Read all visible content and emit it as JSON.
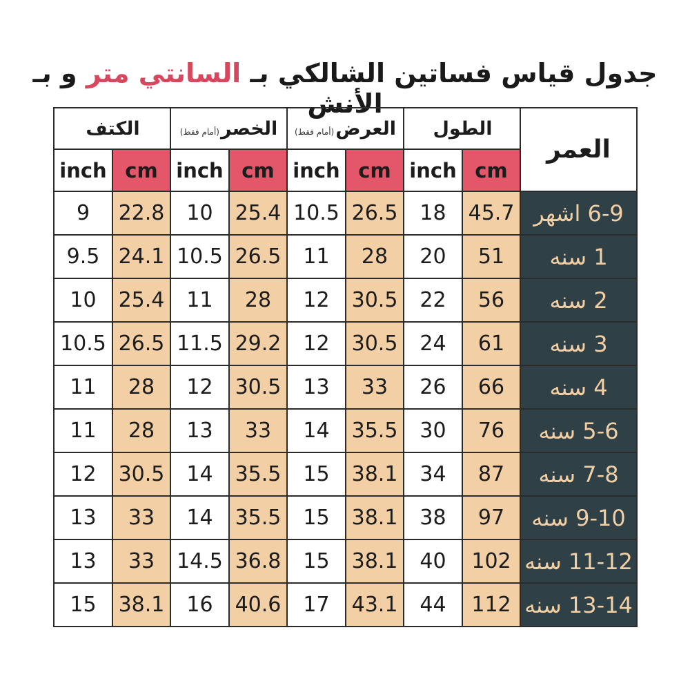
{
  "title": {
    "part1": "جدول قياس فساتين الشالكي بـ ",
    "accent": "السانتي متر",
    "part2": " و بـ الأنش"
  },
  "colors": {
    "accent": "#d9475e",
    "cm_header": "#e4566a",
    "cm_cell": "#f2cfa5",
    "age_cell": "#2f4147",
    "age_text": "#f2cfa5"
  },
  "table": {
    "age_header": "العمر",
    "groups": [
      {
        "name": "الطول",
        "note": ""
      },
      {
        "name": "العرض",
        "note": "(أمام فقط)"
      },
      {
        "name": "الخصر",
        "note": "(أمام فقط)"
      },
      {
        "name": "الكتف",
        "note": ""
      }
    ],
    "units": {
      "cm": "cm",
      "inch": "inch"
    },
    "rows": [
      {
        "age": "6-9 اشهر",
        "length": [
          "45.7",
          "18"
        ],
        "width": [
          "26.5",
          "10.5"
        ],
        "waist": [
          "25.4",
          "10"
        ],
        "shoulder": [
          "22.8",
          "9"
        ]
      },
      {
        "age": "1 سنه",
        "length": [
          "51",
          "20"
        ],
        "width": [
          "28",
          "11"
        ],
        "waist": [
          "26.5",
          "10.5"
        ],
        "shoulder": [
          "24.1",
          "9.5"
        ]
      },
      {
        "age": "2 سنه",
        "length": [
          "56",
          "22"
        ],
        "width": [
          "30.5",
          "12"
        ],
        "waist": [
          "28",
          "11"
        ],
        "shoulder": [
          "25.4",
          "10"
        ]
      },
      {
        "age": "3 سنه",
        "length": [
          "61",
          "24"
        ],
        "width": [
          "30.5",
          "12"
        ],
        "waist": [
          "29.2",
          "11.5"
        ],
        "shoulder": [
          "26.5",
          "10.5"
        ]
      },
      {
        "age": "4 سنه",
        "length": [
          "66",
          "26"
        ],
        "width": [
          "33",
          "13"
        ],
        "waist": [
          "30.5",
          "12"
        ],
        "shoulder": [
          "28",
          "11"
        ]
      },
      {
        "age": "5-6 سنه",
        "length": [
          "76",
          "30"
        ],
        "width": [
          "35.5",
          "14"
        ],
        "waist": [
          "33",
          "13"
        ],
        "shoulder": [
          "28",
          "11"
        ]
      },
      {
        "age": "7-8 سنه",
        "length": [
          "87",
          "34"
        ],
        "width": [
          "38.1",
          "15"
        ],
        "waist": [
          "35.5",
          "14"
        ],
        "shoulder": [
          "30.5",
          "12"
        ]
      },
      {
        "age": "9-10 سنه",
        "length": [
          "97",
          "38"
        ],
        "width": [
          "38.1",
          "15"
        ],
        "waist": [
          "35.5",
          "14"
        ],
        "shoulder": [
          "33",
          "13"
        ]
      },
      {
        "age": "11-12 سنه",
        "length": [
          "102",
          "40"
        ],
        "width": [
          "38.1",
          "15"
        ],
        "waist": [
          "36.8",
          "14.5"
        ],
        "shoulder": [
          "33",
          "13"
        ]
      },
      {
        "age": "13-14 سنه",
        "length": [
          "112",
          "44"
        ],
        "width": [
          "43.1",
          "17"
        ],
        "waist": [
          "40.6",
          "16"
        ],
        "shoulder": [
          "38.1",
          "15"
        ]
      }
    ]
  }
}
